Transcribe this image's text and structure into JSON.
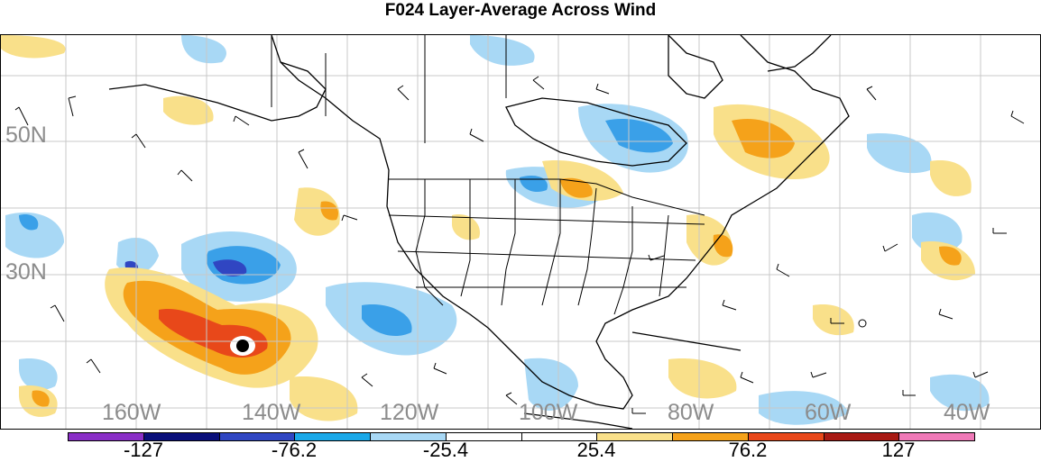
{
  "title": "F024 Layer-Average Across Wind",
  "lat_labels": [
    "50N",
    "30N"
  ],
  "lon_labels": [
    "160W",
    "140W",
    "120W",
    "100W",
    "80W",
    "60W",
    "40W"
  ],
  "colorbar": {
    "labels": [
      "-127",
      "-76.2",
      "-25.4",
      "25.4",
      "76.2",
      "127"
    ],
    "colors": [
      "#8a2fc7",
      "#0a0f7a",
      "#3046c2",
      "#1aa8e8",
      "#a8d8f5",
      "#ffffff",
      "#ffffff",
      "#f9e08a",
      "#f5a21a",
      "#e8481a",
      "#a81a14",
      "#f07ab8"
    ]
  },
  "map": {
    "region": "North America",
    "land_outline_color": "#000000",
    "grid_color": "#c8c8c8",
    "fill_colors": {
      "light_blue": "#a8d8f5",
      "blue": "#3aa0e8",
      "dark_blue": "#3046c2",
      "yellow": "#f9e08a",
      "orange": "#f5a21a",
      "red_orange": "#e8481a"
    },
    "marker": "black-dot"
  }
}
